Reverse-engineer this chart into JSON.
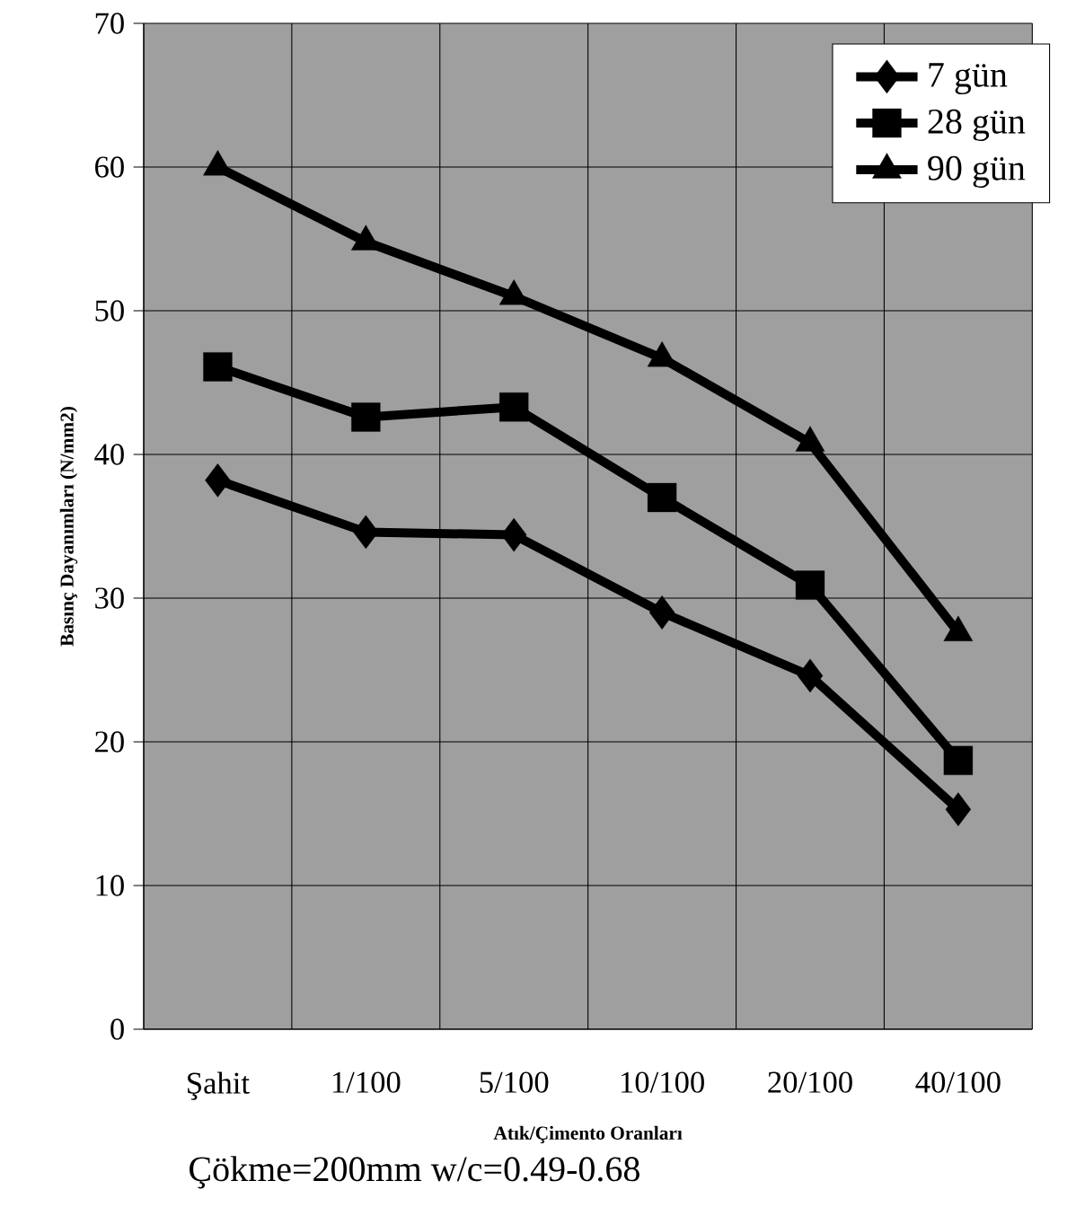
{
  "chart_data": {
    "type": "line",
    "xlabel": "Atık/Çimento Oranları",
    "ylabel": "Basınç Dayanımları (N/mm2)",
    "categories": [
      "Şahit",
      "1/100",
      "5/100",
      "10/100",
      "20/100",
      "40/100"
    ],
    "series": [
      {
        "name": "7 gün",
        "color": "#000000",
        "marker": "diamond",
        "values": [
          38.2,
          34.6,
          34.4,
          29.0,
          24.6,
          15.3
        ]
      },
      {
        "name": "28 gün",
        "color": "#000000",
        "marker": "square",
        "values": [
          46.1,
          42.6,
          43.3,
          37.0,
          30.9,
          18.7
        ]
      },
      {
        "name": "90 gün",
        "color": "#000000",
        "marker": "triangle",
        "values": [
          60.0,
          54.8,
          51.0,
          46.7,
          40.8,
          27.6
        ]
      }
    ],
    "ylim": [
      0,
      70
    ],
    "yticks": [
      0,
      10,
      20,
      30,
      40,
      50,
      60,
      70
    ],
    "grid": true,
    "legend": "top right",
    "line_style": "solid",
    "annotations": [
      "Çökme=200mm      w/c=0.49-0.68"
    ]
  }
}
